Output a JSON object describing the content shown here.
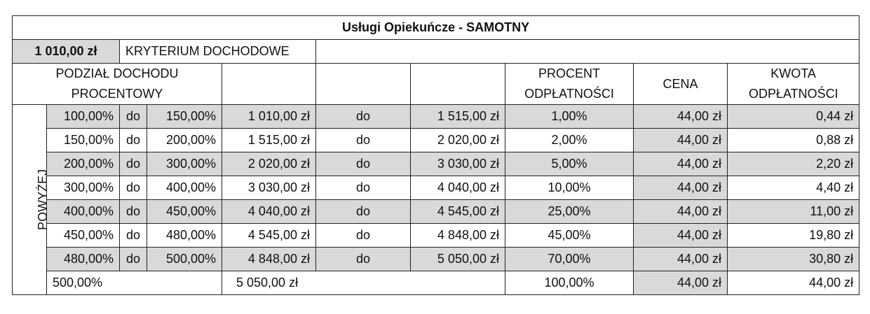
{
  "title": "Usługi Opiekuńcze - SAMOTNY",
  "criterion": {
    "value": "1 010,00 zł",
    "label": "KRYTERIUM DOCHODOWE"
  },
  "headers": {
    "income_split": "PODZIAŁ DOCHODU PROCENTOWY",
    "percent": "PROCENT ODPŁATNOŚCI",
    "price": "CENA",
    "amount": "KWOTA ODPŁATNOŚCI"
  },
  "side_label": "POWYŻEJ",
  "rows": [
    {
      "from_pct": "100,00%",
      "sep": "do",
      "to_pct": "150,00%",
      "from_amt": "1 010,00 zł",
      "sep2": "do",
      "to_amt": "1 515,00 zł",
      "percent": "1,00%",
      "price": "44,00 zł",
      "amount": "0,44 zł"
    },
    {
      "from_pct": "150,00%",
      "sep": "do",
      "to_pct": "200,00%",
      "from_amt": "1 515,00 zł",
      "sep2": "do",
      "to_amt": "2 020,00 zł",
      "percent": "2,00%",
      "price": "44,00 zł",
      "amount": "0,88 zł"
    },
    {
      "from_pct": "200,00%",
      "sep": "do",
      "to_pct": "300,00%",
      "from_amt": "2 020,00 zł",
      "sep2": "do",
      "to_amt": "3 030,00 zł",
      "percent": "5,00%",
      "price": "44,00 zł",
      "amount": "2,20 zł"
    },
    {
      "from_pct": "300,00%",
      "sep": "do",
      "to_pct": "400,00%",
      "from_amt": "3 030,00 zł",
      "sep2": "do",
      "to_amt": "4 040,00 zł",
      "percent": "10,00%",
      "price": "44,00 zł",
      "amount": "4,40 zł"
    },
    {
      "from_pct": "400,00%",
      "sep": "do",
      "to_pct": "450,00%",
      "from_amt": "4 040,00 zł",
      "sep2": "do",
      "to_amt": "4 545,00 zł",
      "percent": "25,00%",
      "price": "44,00 zł",
      "amount": "11,00 zł"
    },
    {
      "from_pct": "450,00%",
      "sep": "do",
      "to_pct": "480,00%",
      "from_amt": "4 545,00 zł",
      "sep2": "do",
      "to_amt": "4 848,00 zł",
      "percent": "45,00%",
      "price": "44,00 zł",
      "amount": "19,80 zł"
    },
    {
      "from_pct": "480,00%",
      "sep": "do",
      "to_pct": "500,00%",
      "from_amt": "4 848,00 zł",
      "sep2": "do",
      "to_amt": "5 050,00 zł",
      "percent": "70,00%",
      "price": "44,00 zł",
      "amount": "30,80 zł"
    }
  ],
  "last_row": {
    "from_pct": "500,00%",
    "from_amt": "5 050,00 zł",
    "percent": "100,00%",
    "price": "44,00 zł",
    "amount": "44,00 zł"
  },
  "colors": {
    "shade": "#d9d9d9",
    "border": "#222222"
  }
}
